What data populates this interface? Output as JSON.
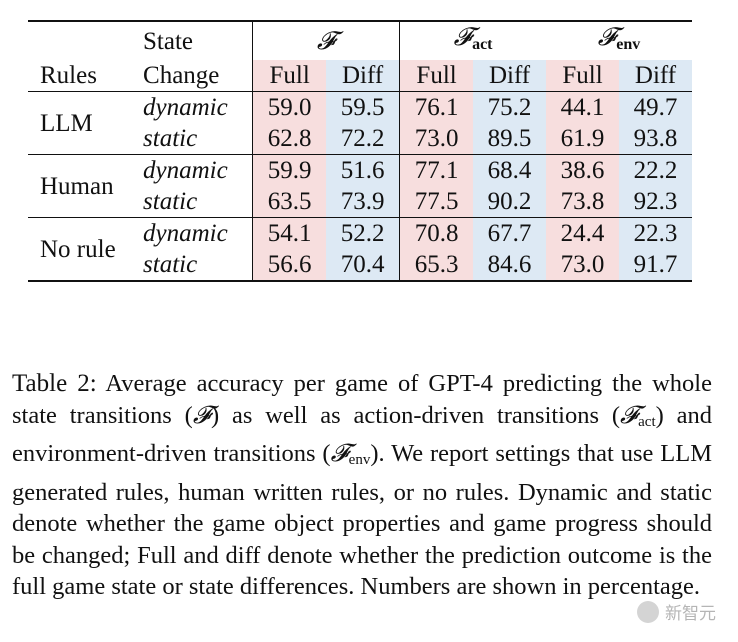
{
  "table": {
    "header": {
      "col1": "Rules",
      "col2_line1": "State",
      "col2_line2": "Change",
      "groups": [
        {
          "symbol": "𝓕",
          "sub": ""
        },
        {
          "symbol": "𝓕",
          "sub": "act"
        },
        {
          "symbol": "𝓕",
          "sub": "env"
        }
      ],
      "full_label": "Full",
      "diff_label": "Diff"
    },
    "sections": [
      {
        "rule": "LLM",
        "rows": [
          {
            "state": "dynamic",
            "values": [
              "59.0",
              "59.5",
              "76.1",
              "75.2",
              "44.1",
              "49.7"
            ]
          },
          {
            "state": "static",
            "values": [
              "62.8",
              "72.2",
              "73.0",
              "89.5",
              "61.9",
              "93.8"
            ]
          }
        ]
      },
      {
        "rule": "Human",
        "rows": [
          {
            "state": "dynamic",
            "values": [
              "59.9",
              "51.6",
              "77.1",
              "68.4",
              "38.6",
              "22.2"
            ]
          },
          {
            "state": "static",
            "values": [
              "63.5",
              "73.9",
              "77.5",
              "90.2",
              "73.8",
              "92.3"
            ]
          }
        ]
      },
      {
        "rule": "No rule",
        "rows": [
          {
            "state": "dynamic",
            "values": [
              "54.1",
              "52.2",
              "70.8",
              "67.7",
              "24.4",
              "22.3"
            ]
          },
          {
            "state": "static",
            "values": [
              "56.6",
              "70.4",
              "65.3",
              "84.6",
              "73.0",
              "91.7"
            ]
          }
        ]
      }
    ]
  },
  "caption": {
    "label": "Table 2:",
    "p1": " Average accuracy per game of GPT-4 predicting the whole state transitions (",
    "sym_F": "𝓕",
    "p2": ") as well as action-driven transitions (",
    "sub_act": "act",
    "p3": ") and environment-driven transitions (",
    "sub_env": "env",
    "p4": "). We report settings that use LLM generated rules, human written rules, or no rules. Dynamic and static denote whether the game object properties and game progress should be changed; Full and diff denote whether the prediction outcome is the full game state or state differences. Numbers are shown in percentage."
  },
  "watermark": {
    "text": "新智元",
    "icon": "wechat-logo-icon"
  }
}
